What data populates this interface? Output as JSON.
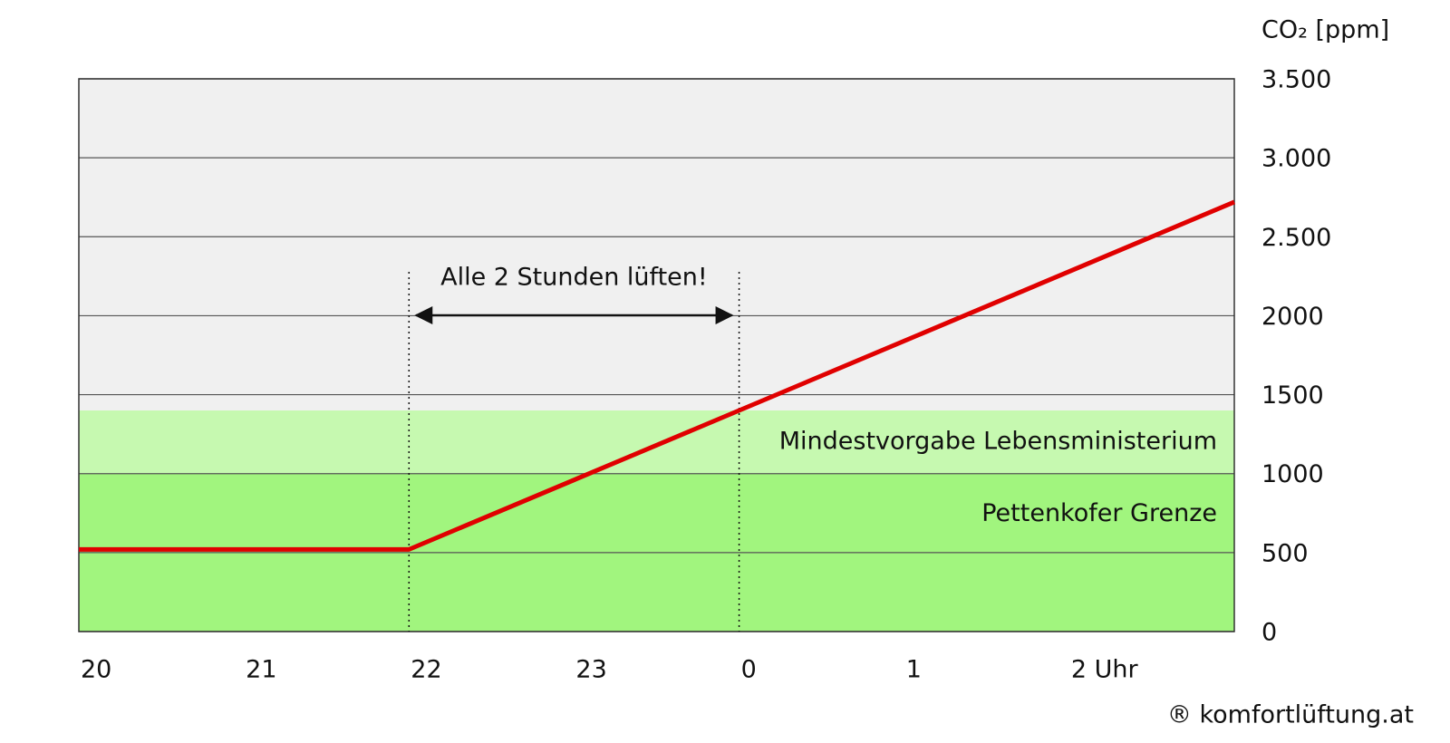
{
  "chart_data": {
    "type": "line",
    "y_label": "CO₂ [ppm]",
    "x": [
      20,
      22,
      24,
      27
    ],
    "series": [
      {
        "color": "#e00000",
        "values": [
          520,
          520,
          1400,
          2720
        ]
      }
    ],
    "xlim": [
      20,
      27
    ],
    "xticks": [
      20,
      21,
      22,
      {
        "value": 23,
        "label": "23"
      },
      {
        "value": 24,
        "label": "0"
      },
      {
        "value": 25,
        "label": "1"
      },
      {
        "value": 26,
        "label": "2 Uhr"
      }
    ],
    "ylim": [
      0,
      3500
    ],
    "yticks": [
      0,
      500,
      1000,
      1500,
      2000,
      {
        "value": 2500,
        "label": "2.500"
      },
      {
        "value": 3000,
        "label": "3.000"
      },
      {
        "value": 3500,
        "label": "3.500"
      }
    ],
    "grid": true,
    "background_color": "#f0f0f0",
    "bands": [
      {
        "label": "Mindestvorgabe Lebensministerium",
        "from": 1000,
        "to": 1400,
        "color": "#c6f9b0"
      },
      {
        "label": "Pettenkofer Grenze",
        "from": 0,
        "to": 1000,
        "color": "#a1f57e"
      }
    ],
    "annotation": {
      "text": "Alle 2 Stunden lüften!",
      "x_from": 22,
      "x_to": 24
    },
    "credit": "® komfortlüftung.at"
  }
}
